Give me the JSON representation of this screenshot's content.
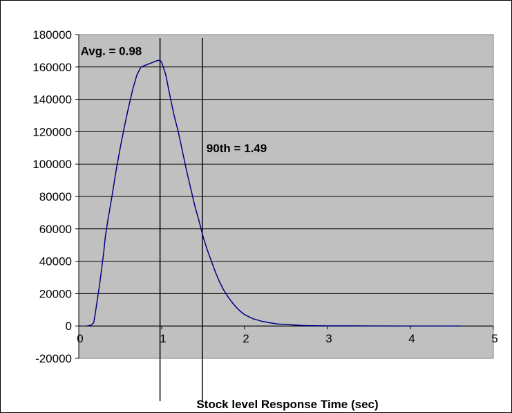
{
  "chart_data": {
    "type": "line",
    "title": "",
    "xlabel": "Stock level Response Time (sec)",
    "ylabel": "",
    "xlim": [
      0,
      5
    ],
    "ylim": [
      -20000,
      180000
    ],
    "x_ticks": [
      0,
      1,
      2,
      3,
      4,
      5
    ],
    "x_tick_labels": [
      "0",
      "1",
      "2",
      "3",
      "4",
      "5"
    ],
    "y_ticks": [
      -20000,
      0,
      20000,
      40000,
      60000,
      80000,
      100000,
      120000,
      140000,
      160000,
      180000
    ],
    "y_tick_labels": [
      "-20000",
      "0",
      "20000",
      "40000",
      "60000",
      "80000",
      "100000",
      "120000",
      "140000",
      "160000",
      "180000"
    ],
    "grid": {
      "horizontal": true,
      "vertical": false
    },
    "plot_background": "#c0c0c0",
    "line_color": "#000080",
    "series": [
      {
        "x": [
          0.1,
          0.15,
          0.18,
          0.2,
          0.22,
          0.25,
          0.28,
          0.3,
          0.32,
          0.35,
          0.4,
          0.45,
          0.5,
          0.55,
          0.6,
          0.65,
          0.7,
          0.75,
          0.8,
          0.85,
          0.9,
          0.95,
          0.98,
          1.0,
          1.05,
          1.1,
          1.15,
          1.2,
          1.25,
          1.3,
          1.35,
          1.4,
          1.45,
          1.5,
          1.55,
          1.6,
          1.65,
          1.7,
          1.75,
          1.8,
          1.85,
          1.9,
          1.95,
          2.0,
          2.1,
          2.2,
          2.3,
          2.4,
          2.5,
          2.6,
          2.7,
          2.8,
          3.0,
          3.5,
          4.0,
          4.5,
          4.62
        ],
        "y": [
          0,
          500,
          2000,
          8000,
          15000,
          25000,
          37000,
          45000,
          55000,
          65000,
          80000,
          96000,
          110000,
          123000,
          135000,
          146000,
          155000,
          160000,
          161000,
          162000,
          163000,
          164000,
          164000,
          163000,
          155000,
          142000,
          130000,
          120000,
          108000,
          96000,
          85000,
          74000,
          65000,
          55000,
          47000,
          40000,
          33000,
          27000,
          22000,
          18000,
          14500,
          11500,
          9000,
          7000,
          4500,
          3000,
          2000,
          1200,
          900,
          600,
          300,
          150,
          100,
          50,
          20,
          10,
          0
        ]
      }
    ],
    "annotations": [
      {
        "label": "Avg. = 0.98",
        "x": 0.98
      },
      {
        "label": "90th = 1.49",
        "x": 1.49
      }
    ]
  }
}
